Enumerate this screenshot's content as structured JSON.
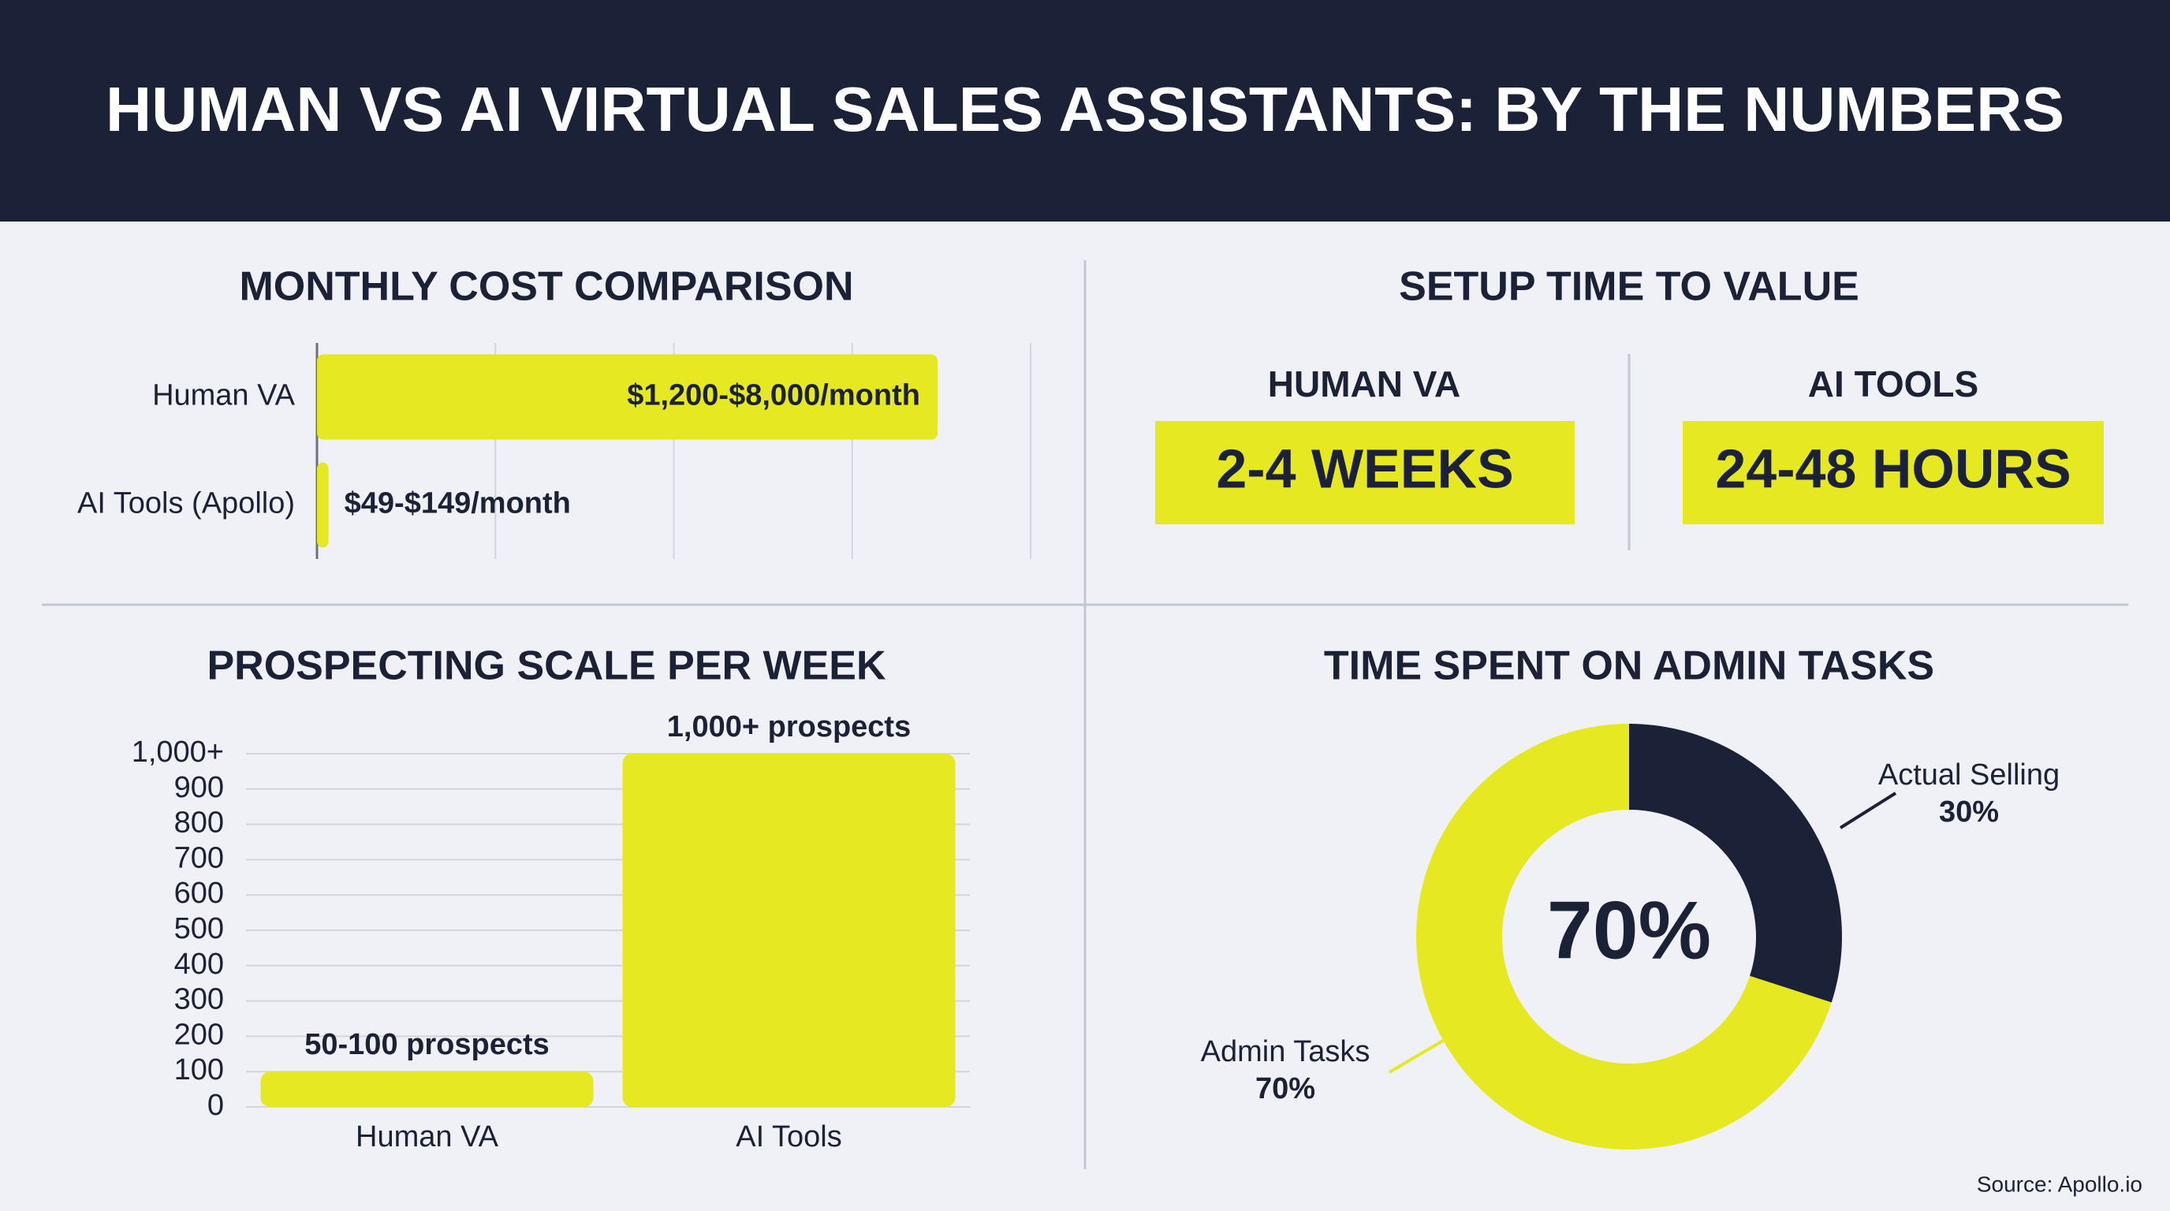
{
  "title": "HUMAN VS AI VIRTUAL SALES ASSISTANTS: BY THE NUMBERS",
  "source": "Source: Apollo.io",
  "setup": {
    "title": "SETUP TIME TO VALUE",
    "columns": [
      {
        "label": "HUMAN VA",
        "value": "2-4 WEEKS"
      },
      {
        "label": "AI TOOLS",
        "value": "24-48 HOURS"
      }
    ]
  },
  "chart_data": [
    {
      "type": "hbar",
      "title": "MONTHLY COST COMPARISON",
      "categories": [
        "Human VA",
        "AI Tools (Apollo)"
      ],
      "values": [
        8000,
        149
      ],
      "value_labels": [
        "$1,200-$8,000/month",
        "$49-$149/month"
      ],
      "xlim": [
        0,
        9200
      ],
      "color": "#e6e822",
      "grid": true
    },
    {
      "type": "bar",
      "title": "PROSPECTING SCALE PER WEEK",
      "categories": [
        "Human VA",
        "AI Tools"
      ],
      "values": [
        100,
        1000
      ],
      "value_labels": [
        "50-100 prospects",
        "1,000+ prospects"
      ],
      "ylim": [
        0,
        1000
      ],
      "yticks": [
        0,
        100,
        200,
        300,
        400,
        500,
        600,
        700,
        800,
        900,
        {
          "value": 1000,
          "label": "1,000+"
        }
      ],
      "color": "#e6e822",
      "grid": true
    },
    {
      "type": "donut",
      "title": "TIME SPENT ON ADMIN TASKS",
      "categories": [
        "Admin Tasks",
        "Actual Selling"
      ],
      "values": [
        70,
        30
      ],
      "value_labels": [
        "70%",
        "30%"
      ],
      "colors": [
        "#e6e822",
        "#1b2136"
      ],
      "center_label": "70%"
    }
  ]
}
